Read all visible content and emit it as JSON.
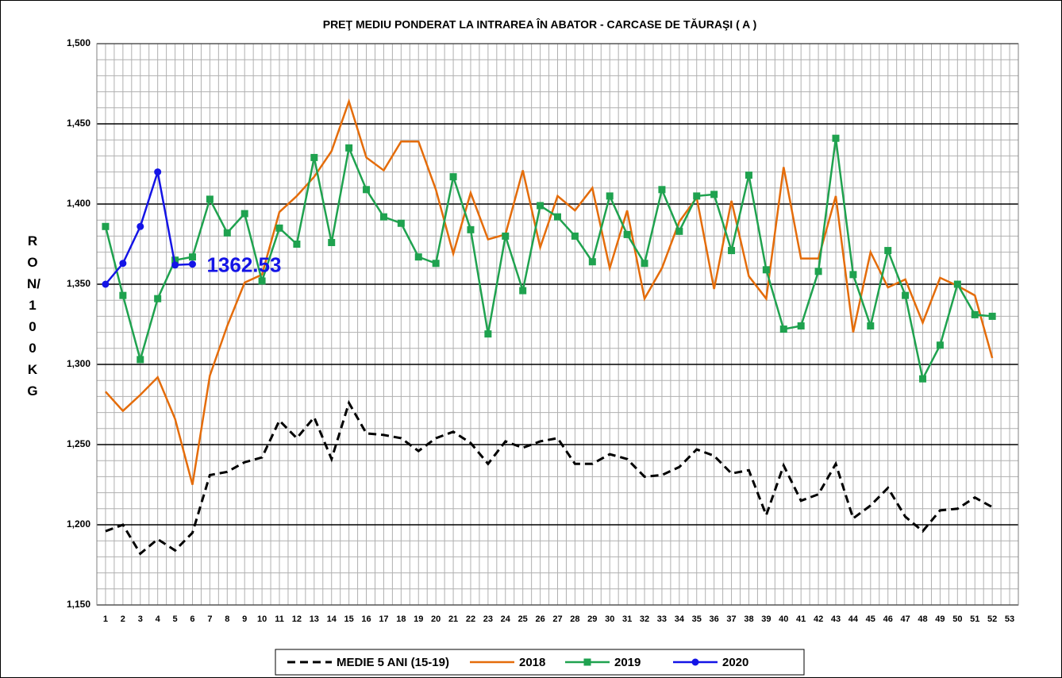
{
  "chart_data": {
    "type": "line",
    "title": "PREŢ MEDIU PONDERAT LA INTRAREA ÎN ABATOR - CARCASE DE TĂURAŞI ( A )",
    "y_label": "RON/ 100 KG",
    "annotation": "1362.53",
    "categories": [
      "1",
      "2",
      "3",
      "4",
      "5",
      "6",
      "7",
      "8",
      "9",
      "10",
      "11",
      "12",
      "13",
      "14",
      "15",
      "16",
      "17",
      "18",
      "19",
      "20",
      "21",
      "22",
      "23",
      "24",
      "25",
      "26",
      "27",
      "28",
      "29",
      "30",
      "31",
      "32",
      "33",
      "34",
      "35",
      "36",
      "37",
      "38",
      "39",
      "40",
      "41",
      "42",
      "43",
      "44",
      "45",
      "46",
      "47",
      "48",
      "49",
      "50",
      "51",
      "52",
      "53"
    ],
    "ylim": [
      1150,
      1500
    ],
    "yticks": [
      {
        "value": 1150,
        "label": "1,150"
      },
      {
        "value": 1200,
        "label": "1,200"
      },
      {
        "value": 1250,
        "label": "1,250"
      },
      {
        "value": 1300,
        "label": "1,300"
      },
      {
        "value": 1350,
        "label": "1,350"
      },
      {
        "value": 1400,
        "label": "1,400"
      },
      {
        "value": 1450,
        "label": "1,450"
      },
      {
        "value": 1500,
        "label": "1,500"
      }
    ],
    "grid": true,
    "legend": "bottom",
    "series": [
      {
        "name": "MEDIE 5 ANI (15-19)",
        "color": "#000000",
        "style": "dashed",
        "marker": null,
        "values": [
          1196,
          1200,
          1182,
          1191,
          1184,
          1195,
          1231,
          1233,
          1239,
          1242,
          1265,
          1254,
          1267,
          1241,
          1276,
          1257,
          1256,
          1254,
          1246,
          1254,
          1258,
          1251,
          1238,
          1252,
          1248,
          1252,
          1254,
          1238,
          1238,
          1244,
          1241,
          1230,
          1231,
          1236,
          1247,
          1243,
          1232,
          1234,
          1206,
          1237,
          1215,
          1219,
          1238,
          1204,
          1212,
          1223,
          1205,
          1196,
          1209,
          1210,
          1217,
          1211,
          null
        ]
      },
      {
        "name": "2018",
        "color": "#e46c0a",
        "style": "solid",
        "marker": null,
        "values": [
          1283,
          1271,
          1281,
          1292,
          1266,
          1225,
          1293,
          1324,
          1351,
          1356,
          1395,
          1405,
          1417,
          1433,
          1464,
          1429,
          1421,
          1439,
          1439,
          1409,
          1369,
          1407,
          1378,
          1381,
          1421,
          1373,
          1405,
          1396,
          1410,
          1360,
          1396,
          1341,
          1360,
          1389,
          1404,
          1347,
          1402,
          1355,
          1341,
          1423,
          1366,
          1366,
          1405,
          1320,
          1370,
          1348,
          1353,
          1326,
          1354,
          1349,
          1343,
          1304,
          null
        ]
      },
      {
        "name": "2019",
        "color": "#1fa24f",
        "style": "solid",
        "marker": "square",
        "values": [
          1386,
          1343,
          1303,
          1341,
          1365,
          1367,
          1403,
          1382,
          1394,
          1352,
          1385,
          1375,
          1429,
          1376,
          1435,
          1409,
          1392,
          1388,
          1367,
          1363,
          1417,
          1384,
          1319,
          1380,
          1346,
          1399,
          1392,
          1380,
          1364,
          1405,
          1381,
          1363,
          1409,
          1383,
          1405,
          1406,
          1371,
          1418,
          1359,
          1322,
          1324,
          1358,
          1441,
          1356,
          1324,
          1371,
          1343,
          1291,
          1312,
          1350,
          1331,
          1330,
          null
        ]
      },
      {
        "name": "2020",
        "color": "#1414e6",
        "style": "solid",
        "marker": "circle",
        "values": [
          1350,
          1363,
          1386,
          1420,
          1362,
          1362.53,
          null,
          null,
          null,
          null,
          null,
          null,
          null,
          null,
          null,
          null,
          null,
          null,
          null,
          null,
          null,
          null,
          null,
          null,
          null,
          null,
          null,
          null,
          null,
          null,
          null,
          null,
          null,
          null,
          null,
          null,
          null,
          null,
          null,
          null,
          null,
          null,
          null,
          null,
          null,
          null,
          null,
          null,
          null,
          null,
          null,
          null,
          null
        ]
      }
    ]
  }
}
